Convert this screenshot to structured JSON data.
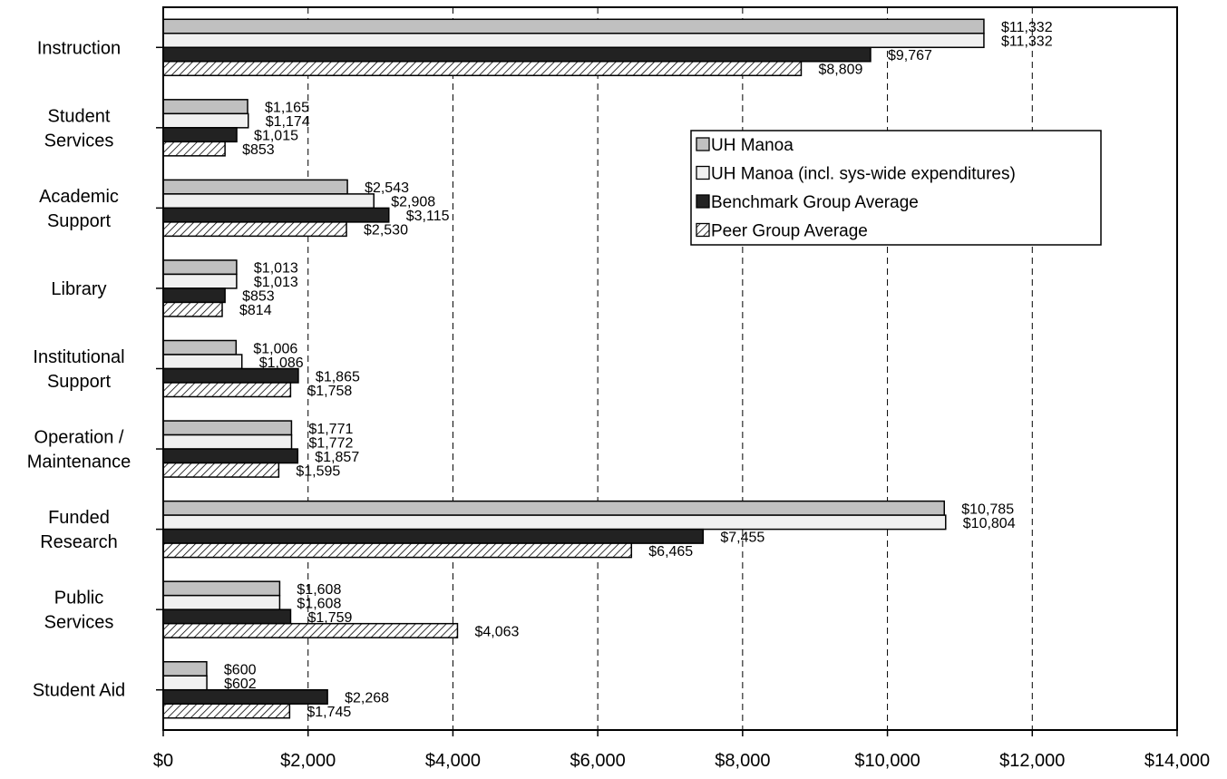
{
  "chart_data": {
    "type": "bar",
    "orientation": "horizontal",
    "categories": [
      [
        "Instruction"
      ],
      [
        "Student",
        "Services"
      ],
      [
        "Academic",
        "Support"
      ],
      [
        "Library"
      ],
      [
        "Institutional",
        "Support"
      ],
      [
        "Operation /",
        "Maintenance"
      ],
      [
        "Funded",
        "Research"
      ],
      [
        "Public",
        "Services"
      ],
      [
        "Student Aid"
      ]
    ],
    "series": [
      {
        "name": "UH Manoa",
        "values": [
          11332,
          1165,
          2543,
          1013,
          1006,
          1771,
          10785,
          1608,
          600
        ],
        "labels": [
          "$11,332",
          "$1,165",
          "$2,543",
          "$1,013",
          "$1,006",
          "$1,771",
          "$10,785",
          "$1,608",
          "$600"
        ],
        "fill": "#c0c0c0",
        "pattern": "solid"
      },
      {
        "name": "UH Manoa (incl. sys-wide expenditures)",
        "values": [
          11332,
          1174,
          2908,
          1013,
          1086,
          1772,
          10804,
          1608,
          602
        ],
        "labels": [
          "$11,332",
          "$1,174",
          "$2,908",
          "$1,013",
          "$1,086",
          "$1,772",
          "$10,804",
          "$1,608",
          "$602"
        ],
        "fill": "#f0f0f0",
        "pattern": "solid"
      },
      {
        "name": "Benchmark Group Average",
        "values": [
          9767,
          1015,
          3115,
          853,
          1865,
          1857,
          7455,
          1759,
          2268
        ],
        "labels": [
          "$9,767",
          "$1,015",
          "$3,115",
          "$853",
          "$1,865",
          "$1,857",
          "$7,455",
          "$1,759",
          "$2,268"
        ],
        "fill": "#222222",
        "pattern": "solid"
      },
      {
        "name": "Peer Group Average",
        "values": [
          8809,
          853,
          2530,
          814,
          1758,
          1595,
          6465,
          4063,
          1745
        ],
        "labels": [
          "$8,809",
          "$853",
          "$2,530",
          "$814",
          "$1,758",
          "$1,595",
          "$6,465",
          "$4,063",
          "$1,745"
        ],
        "fill": "#ffffff",
        "pattern": "diagonal-hatch"
      }
    ],
    "x_ticks": [
      "$0",
      "$2,000",
      "$4,000",
      "$6,000",
      "$8,000",
      "$10,000",
      "$12,000",
      "$14,000"
    ],
    "xlim": [
      0,
      14000
    ],
    "tick_step": 2000,
    "grid": "vertical dashed",
    "legend_position": "upper-right"
  }
}
